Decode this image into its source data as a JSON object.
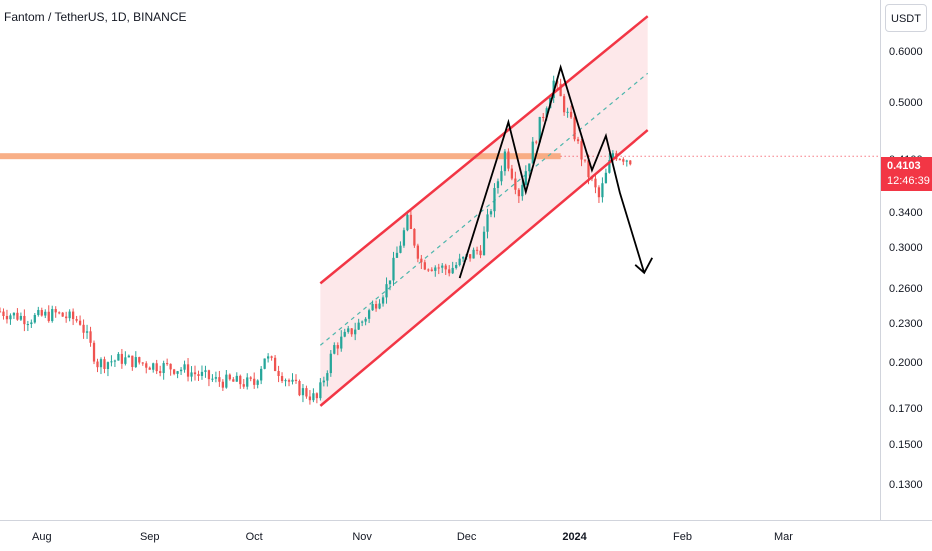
{
  "header": {
    "title": "Fantom / TetherUS, 1D, BINANCE"
  },
  "price_axis": {
    "currency": "USDT",
    "last_price": "0.4103",
    "countdown": "12:46:39"
  },
  "colors": {
    "up": "#26a69a",
    "down": "#ef5350",
    "channel": "#f23645",
    "channel_fill": "#fde4e6",
    "midline": "#4db6ac",
    "resistance": "#f7a172",
    "pattern": "#000000"
  },
  "chart_data": {
    "type": "candlestick",
    "log_scale": true,
    "ylim": [
      0.115,
      0.72
    ],
    "y_ticks": [
      "0.6000",
      "0.5000",
      "0.4100",
      "0.3400",
      "0.3000",
      "0.2600",
      "0.2300",
      "0.2000",
      "0.1700",
      "0.1500",
      "0.1300"
    ],
    "y_tick_values": [
      0.6,
      0.5,
      0.41,
      0.34,
      0.3,
      0.26,
      0.23,
      0.2,
      0.17,
      0.15,
      0.13
    ],
    "x_ticks": [
      {
        "label": "Aug",
        "date": "2023-08-01",
        "bold": false
      },
      {
        "label": "Sep",
        "date": "2023-09-01",
        "bold": false
      },
      {
        "label": "Oct",
        "date": "2023-10-01",
        "bold": false
      },
      {
        "label": "Nov",
        "date": "2023-11-01",
        "bold": false
      },
      {
        "label": "Dec",
        "date": "2023-12-01",
        "bold": false
      },
      {
        "label": "2024",
        "date": "2024-01-01",
        "bold": true
      },
      {
        "label": "Feb",
        "date": "2024-02-01",
        "bold": false
      },
      {
        "label": "Mar",
        "date": "2024-03-01",
        "bold": false
      }
    ],
    "xlim": [
      "2023-07-20",
      "2024-03-29"
    ],
    "series_close": [
      {
        "date": "2023-07-20",
        "close": 0.24
      },
      {
        "date": "2023-07-28",
        "close": 0.234
      },
      {
        "date": "2023-08-05",
        "close": 0.238
      },
      {
        "date": "2023-08-12",
        "close": 0.232
      },
      {
        "date": "2023-08-17",
        "close": 0.2
      },
      {
        "date": "2023-08-24",
        "close": 0.203
      },
      {
        "date": "2023-09-01",
        "close": 0.199
      },
      {
        "date": "2023-09-10",
        "close": 0.196
      },
      {
        "date": "2023-09-20",
        "close": 0.188
      },
      {
        "date": "2023-10-01",
        "close": 0.186
      },
      {
        "date": "2023-10-04",
        "close": 0.205
      },
      {
        "date": "2023-10-12",
        "close": 0.185
      },
      {
        "date": "2023-10-19",
        "close": 0.176
      },
      {
        "date": "2023-10-24",
        "close": 0.212
      },
      {
        "date": "2023-11-01",
        "close": 0.232
      },
      {
        "date": "2023-11-08",
        "close": 0.262
      },
      {
        "date": "2023-11-14",
        "close": 0.33
      },
      {
        "date": "2023-11-18",
        "close": 0.285
      },
      {
        "date": "2023-11-26",
        "close": 0.278
      },
      {
        "date": "2023-12-05",
        "close": 0.3
      },
      {
        "date": "2023-12-12",
        "close": 0.42
      },
      {
        "date": "2023-12-16",
        "close": 0.365
      },
      {
        "date": "2023-12-22",
        "close": 0.465
      },
      {
        "date": "2023-12-26",
        "close": 0.54
      },
      {
        "date": "2023-12-31",
        "close": 0.465
      },
      {
        "date": "2024-01-04",
        "close": 0.4
      },
      {
        "date": "2024-01-08",
        "close": 0.358
      },
      {
        "date": "2024-01-12",
        "close": 0.42
      },
      {
        "date": "2024-01-17",
        "close": 0.41
      }
    ],
    "channel": {
      "upper": [
        {
          "date": "2023-10-20",
          "price": 0.265
        },
        {
          "date": "2024-01-22",
          "price": 0.68
        }
      ],
      "lower": [
        {
          "date": "2023-10-20",
          "price": 0.172
        },
        {
          "date": "2024-01-22",
          "price": 0.455
        }
      ],
      "midline": [
        {
          "date": "2023-10-20",
          "price": 0.213
        },
        {
          "date": "2024-01-22",
          "price": 0.556
        }
      ]
    },
    "resistance_level": 0.415,
    "pattern_path": [
      {
        "date": "2023-11-29",
        "price": 0.27
      },
      {
        "date": "2023-12-13",
        "price": 0.468
      },
      {
        "date": "2023-12-18",
        "price": 0.366
      },
      {
        "date": "2023-12-28",
        "price": 0.568
      },
      {
        "date": "2024-01-06",
        "price": 0.395
      },
      {
        "date": "2024-01-10",
        "price": 0.446
      },
      {
        "date": "2024-01-14",
        "price": 0.365
      },
      {
        "date": "2024-01-21",
        "price": 0.275
      }
    ],
    "arrow_tip": {
      "date": "2024-01-21",
      "price": 0.275
    }
  }
}
